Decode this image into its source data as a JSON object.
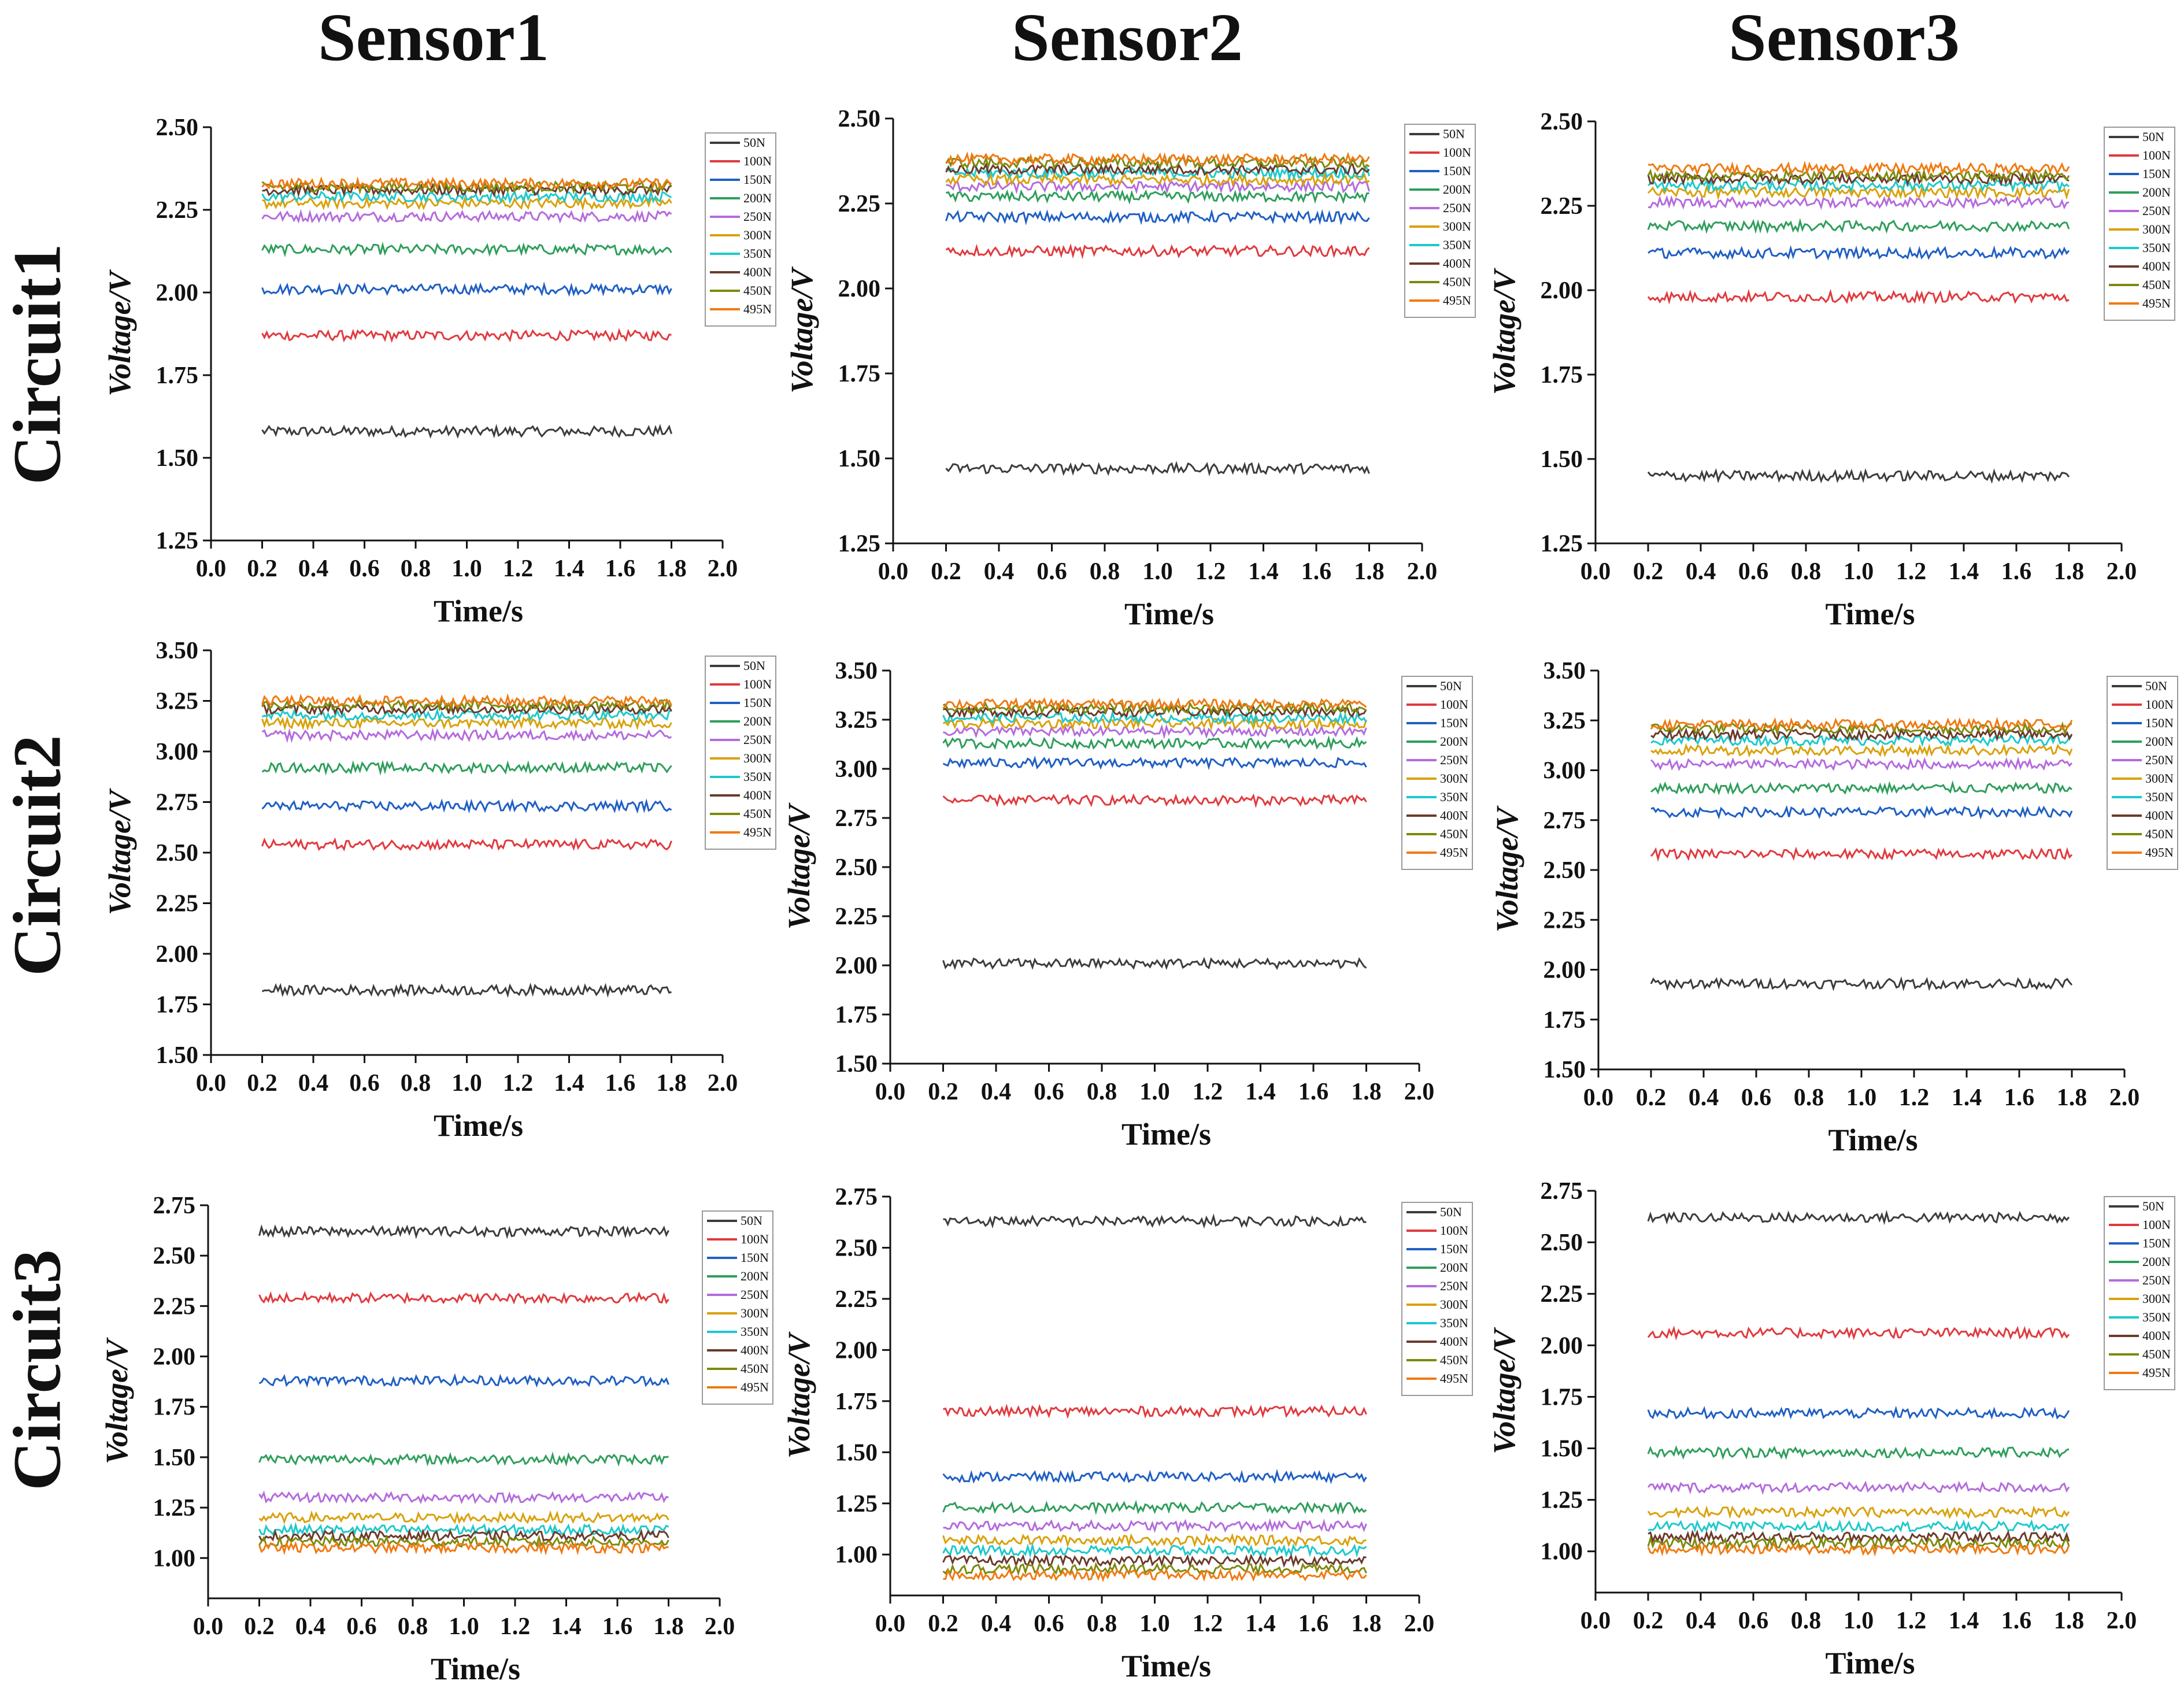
{
  "columns": [
    "Sensor1",
    "Sensor2",
    "Sensor3"
  ],
  "rows": [
    "Circuit1",
    "Circuit2",
    "Circuit3"
  ],
  "series_colors": {
    "50N": "#3c3c3c",
    "100N": "#e03a3e",
    "150N": "#1f5fc4",
    "200N": "#2e9e5b",
    "250N": "#b46bdc",
    "300N": "#d9a10b",
    "350N": "#1ec9cc",
    "400N": "#6b3a2a",
    "450N": "#7d8a0e",
    "495N": "#f07a12"
  },
  "chart_data": [
    {
      "type": "line",
      "panel": "Circuit1-Sensor1",
      "xlabel": "Time/s",
      "ylabel": "Voltage/V",
      "xlim": [
        0,
        2.0
      ],
      "ylim": [
        1.25,
        2.5
      ],
      "yticks": [
        1.25,
        1.5,
        1.75,
        2.0,
        2.25,
        2.5
      ],
      "xticks": [
        0.0,
        0.2,
        0.4,
        0.6,
        0.8,
        1.0,
        1.2,
        1.4,
        1.6,
        1.8,
        2.0
      ],
      "x_range": [
        0.2,
        1.8
      ],
      "series": [
        {
          "name": "50N",
          "value": 1.58
        },
        {
          "name": "100N",
          "value": 1.87
        },
        {
          "name": "150N",
          "value": 2.01
        },
        {
          "name": "200N",
          "value": 2.13
        },
        {
          "name": "250N",
          "value": 2.23
        },
        {
          "name": "300N",
          "value": 2.27
        },
        {
          "name": "350N",
          "value": 2.29
        },
        {
          "name": "400N",
          "value": 2.31
        },
        {
          "name": "450N",
          "value": 2.32
        },
        {
          "name": "495N",
          "value": 2.33
        }
      ]
    },
    {
      "type": "line",
      "panel": "Circuit1-Sensor2",
      "xlabel": "Time/s",
      "ylabel": "Voltage/V",
      "xlim": [
        0,
        2.0
      ],
      "ylim": [
        1.25,
        2.5
      ],
      "yticks": [
        1.25,
        1.5,
        1.75,
        2.0,
        2.25,
        2.5
      ],
      "xticks": [
        0.0,
        0.2,
        0.4,
        0.6,
        0.8,
        1.0,
        1.2,
        1.4,
        1.6,
        1.8,
        2.0
      ],
      "x_range": [
        0.2,
        1.8
      ],
      "series": [
        {
          "name": "50N",
          "value": 1.47
        },
        {
          "name": "100N",
          "value": 2.11
        },
        {
          "name": "150N",
          "value": 2.21
        },
        {
          "name": "200N",
          "value": 2.27
        },
        {
          "name": "250N",
          "value": 2.3
        },
        {
          "name": "300N",
          "value": 2.32
        },
        {
          "name": "350N",
          "value": 2.34
        },
        {
          "name": "400N",
          "value": 2.35
        },
        {
          "name": "450N",
          "value": 2.37
        },
        {
          "name": "495N",
          "value": 2.38
        }
      ]
    },
    {
      "type": "line",
      "panel": "Circuit1-Sensor3",
      "xlabel": "Time/s",
      "ylabel": "Voltage/V",
      "xlim": [
        0,
        2.0
      ],
      "ylim": [
        1.25,
        2.5
      ],
      "yticks": [
        1.25,
        1.5,
        1.75,
        2.0,
        2.25,
        2.5
      ],
      "xticks": [
        0.0,
        0.2,
        0.4,
        0.6,
        0.8,
        1.0,
        1.2,
        1.4,
        1.6,
        1.8,
        2.0
      ],
      "x_range": [
        0.2,
        1.8
      ],
      "series": [
        {
          "name": "50N",
          "value": 1.45
        },
        {
          "name": "100N",
          "value": 1.98
        },
        {
          "name": "150N",
          "value": 2.11
        },
        {
          "name": "200N",
          "value": 2.19
        },
        {
          "name": "250N",
          "value": 2.26
        },
        {
          "name": "300N",
          "value": 2.29
        },
        {
          "name": "350N",
          "value": 2.31
        },
        {
          "name": "400N",
          "value": 2.33
        },
        {
          "name": "450N",
          "value": 2.34
        },
        {
          "name": "495N",
          "value": 2.36
        }
      ]
    },
    {
      "type": "line",
      "panel": "Circuit2-Sensor1",
      "xlabel": "Time/s",
      "ylabel": "Voltage/V",
      "xlim": [
        0,
        2.0
      ],
      "ylim": [
        1.5,
        3.5
      ],
      "yticks": [
        1.5,
        1.75,
        2.0,
        2.25,
        2.5,
        2.75,
        3.0,
        3.25,
        3.5
      ],
      "xticks": [
        0.0,
        0.2,
        0.4,
        0.6,
        0.8,
        1.0,
        1.2,
        1.4,
        1.6,
        1.8,
        2.0
      ],
      "x_range": [
        0.2,
        1.8
      ],
      "series": [
        {
          "name": "50N",
          "value": 1.82
        },
        {
          "name": "100N",
          "value": 2.54
        },
        {
          "name": "150N",
          "value": 2.73
        },
        {
          "name": "200N",
          "value": 2.92
        },
        {
          "name": "250N",
          "value": 3.08
        },
        {
          "name": "300N",
          "value": 3.14
        },
        {
          "name": "350N",
          "value": 3.18
        },
        {
          "name": "400N",
          "value": 3.21
        },
        {
          "name": "450N",
          "value": 3.23
        },
        {
          "name": "495N",
          "value": 3.25
        }
      ]
    },
    {
      "type": "line",
      "panel": "Circuit2-Sensor2",
      "xlabel": "Time/s",
      "ylabel": "Voltage/V",
      "xlim": [
        0,
        2.0
      ],
      "ylim": [
        1.5,
        3.5
      ],
      "yticks": [
        1.5,
        1.75,
        2.0,
        2.25,
        2.5,
        2.75,
        3.0,
        3.25,
        3.5
      ],
      "xticks": [
        0.0,
        0.2,
        0.4,
        0.6,
        0.8,
        1.0,
        1.2,
        1.4,
        1.6,
        1.8,
        2.0
      ],
      "x_range": [
        0.2,
        1.8
      ],
      "series": [
        {
          "name": "50N",
          "value": 2.01
        },
        {
          "name": "100N",
          "value": 2.84
        },
        {
          "name": "150N",
          "value": 3.03
        },
        {
          "name": "200N",
          "value": 3.13
        },
        {
          "name": "250N",
          "value": 3.19
        },
        {
          "name": "300N",
          "value": 3.23
        },
        {
          "name": "350N",
          "value": 3.26
        },
        {
          "name": "400N",
          "value": 3.29
        },
        {
          "name": "450N",
          "value": 3.31
        },
        {
          "name": "495N",
          "value": 3.33
        }
      ]
    },
    {
      "type": "line",
      "panel": "Circuit2-Sensor3",
      "xlabel": "Time/s",
      "ylabel": "Voltage/V",
      "xlim": [
        0,
        2.0
      ],
      "ylim": [
        1.5,
        3.5
      ],
      "yticks": [
        1.5,
        1.75,
        2.0,
        2.25,
        2.5,
        2.75,
        3.0,
        3.25,
        3.5
      ],
      "xticks": [
        0.0,
        0.2,
        0.4,
        0.6,
        0.8,
        1.0,
        1.2,
        1.4,
        1.6,
        1.8,
        2.0
      ],
      "x_range": [
        0.2,
        1.8
      ],
      "series": [
        {
          "name": "50N",
          "value": 1.93
        },
        {
          "name": "100N",
          "value": 2.58
        },
        {
          "name": "150N",
          "value": 2.79
        },
        {
          "name": "200N",
          "value": 2.91
        },
        {
          "name": "250N",
          "value": 3.03
        },
        {
          "name": "300N",
          "value": 3.1
        },
        {
          "name": "350N",
          "value": 3.15
        },
        {
          "name": "400N",
          "value": 3.18
        },
        {
          "name": "450N",
          "value": 3.21
        },
        {
          "name": "495N",
          "value": 3.23
        }
      ]
    },
    {
      "type": "line",
      "panel": "Circuit3-Sensor1",
      "xlabel": "Time/s",
      "ylabel": "Voltage/V",
      "xlim": [
        0,
        2.0
      ],
      "ylim": [
        0.8,
        2.75
      ],
      "yticks": [
        1.0,
        1.25,
        1.5,
        1.75,
        2.0,
        2.25,
        2.5,
        2.75
      ],
      "xticks": [
        0.0,
        0.2,
        0.4,
        0.6,
        0.8,
        1.0,
        1.2,
        1.4,
        1.6,
        1.8,
        2.0
      ],
      "x_range": [
        0.2,
        1.8
      ],
      "series": [
        {
          "name": "50N",
          "value": 2.62
        },
        {
          "name": "100N",
          "value": 2.29
        },
        {
          "name": "150N",
          "value": 1.88
        },
        {
          "name": "200N",
          "value": 1.49
        },
        {
          "name": "250N",
          "value": 1.3
        },
        {
          "name": "300N",
          "value": 1.2
        },
        {
          "name": "350N",
          "value": 1.14
        },
        {
          "name": "400N",
          "value": 1.11
        },
        {
          "name": "450N",
          "value": 1.08
        },
        {
          "name": "495N",
          "value": 1.05
        }
      ]
    },
    {
      "type": "line",
      "panel": "Circuit3-Sensor2",
      "xlabel": "Time/s",
      "ylabel": "Voltage/V",
      "xlim": [
        0,
        2.0
      ],
      "ylim": [
        0.8,
        2.75
      ],
      "yticks": [
        1.0,
        1.25,
        1.5,
        1.75,
        2.0,
        2.25,
        2.5,
        2.75
      ],
      "xticks": [
        0.0,
        0.2,
        0.4,
        0.6,
        0.8,
        1.0,
        1.2,
        1.4,
        1.6,
        1.8,
        2.0
      ],
      "x_range": [
        0.2,
        1.8
      ],
      "series": [
        {
          "name": "50N",
          "value": 2.63
        },
        {
          "name": "100N",
          "value": 1.7
        },
        {
          "name": "150N",
          "value": 1.38
        },
        {
          "name": "200N",
          "value": 1.23
        },
        {
          "name": "250N",
          "value": 1.14
        },
        {
          "name": "300N",
          "value": 1.07
        },
        {
          "name": "350N",
          "value": 1.02
        },
        {
          "name": "400N",
          "value": 0.97
        },
        {
          "name": "450N",
          "value": 0.93
        },
        {
          "name": "495N",
          "value": 0.9
        }
      ]
    },
    {
      "type": "line",
      "panel": "Circuit3-Sensor3",
      "xlabel": "Time/s",
      "ylabel": "Voltage/V",
      "xlim": [
        0,
        2.0
      ],
      "ylim": [
        0.8,
        2.75
      ],
      "yticks": [
        1.0,
        1.25,
        1.5,
        1.75,
        2.0,
        2.25,
        2.5,
        2.75
      ],
      "xticks": [
        0.0,
        0.2,
        0.4,
        0.6,
        0.8,
        1.0,
        1.2,
        1.4,
        1.6,
        1.8,
        2.0
      ],
      "x_range": [
        0.2,
        1.8
      ],
      "series": [
        {
          "name": "50N",
          "value": 2.62
        },
        {
          "name": "100N",
          "value": 2.06
        },
        {
          "name": "150N",
          "value": 1.67
        },
        {
          "name": "200N",
          "value": 1.48
        },
        {
          "name": "250N",
          "value": 1.31
        },
        {
          "name": "300N",
          "value": 1.19
        },
        {
          "name": "350N",
          "value": 1.12
        },
        {
          "name": "400N",
          "value": 1.07
        },
        {
          "name": "450N",
          "value": 1.04
        },
        {
          "name": "495N",
          "value": 1.01
        }
      ]
    }
  ]
}
